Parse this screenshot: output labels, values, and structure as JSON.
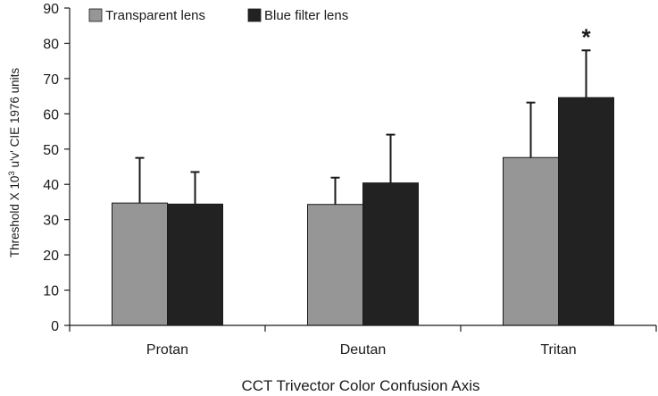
{
  "chart_data": {
    "type": "bar",
    "categories": [
      "Protan",
      "Deutan",
      "Tritan"
    ],
    "series": [
      {
        "name": "Transparent lens",
        "values": [
          34.7,
          34.3,
          47.6
        ],
        "error": [
          12.8,
          7.6,
          15.6
        ],
        "color": "#969696"
      },
      {
        "name": "Blue filter lens",
        "values": [
          34.4,
          40.4,
          64.6
        ],
        "error": [
          9.1,
          13.7,
          13.4
        ],
        "color": "#222222"
      }
    ],
    "annotations": [
      {
        "category": "Tritan",
        "series": "Blue filter lens",
        "text": "*"
      }
    ],
    "xlabel": "CCT Trivector Color Confusion Axis",
    "ylabel_main": "Threshold X 10",
    "ylabel_sup": "3",
    "ylabel_rest": " u'v' CIE 1976 units",
    "ylim": [
      0,
      90
    ],
    "yticks": [
      0,
      10,
      20,
      30,
      40,
      50,
      60,
      70,
      80,
      90
    ],
    "legend_position": "top-left",
    "grid": false
  }
}
